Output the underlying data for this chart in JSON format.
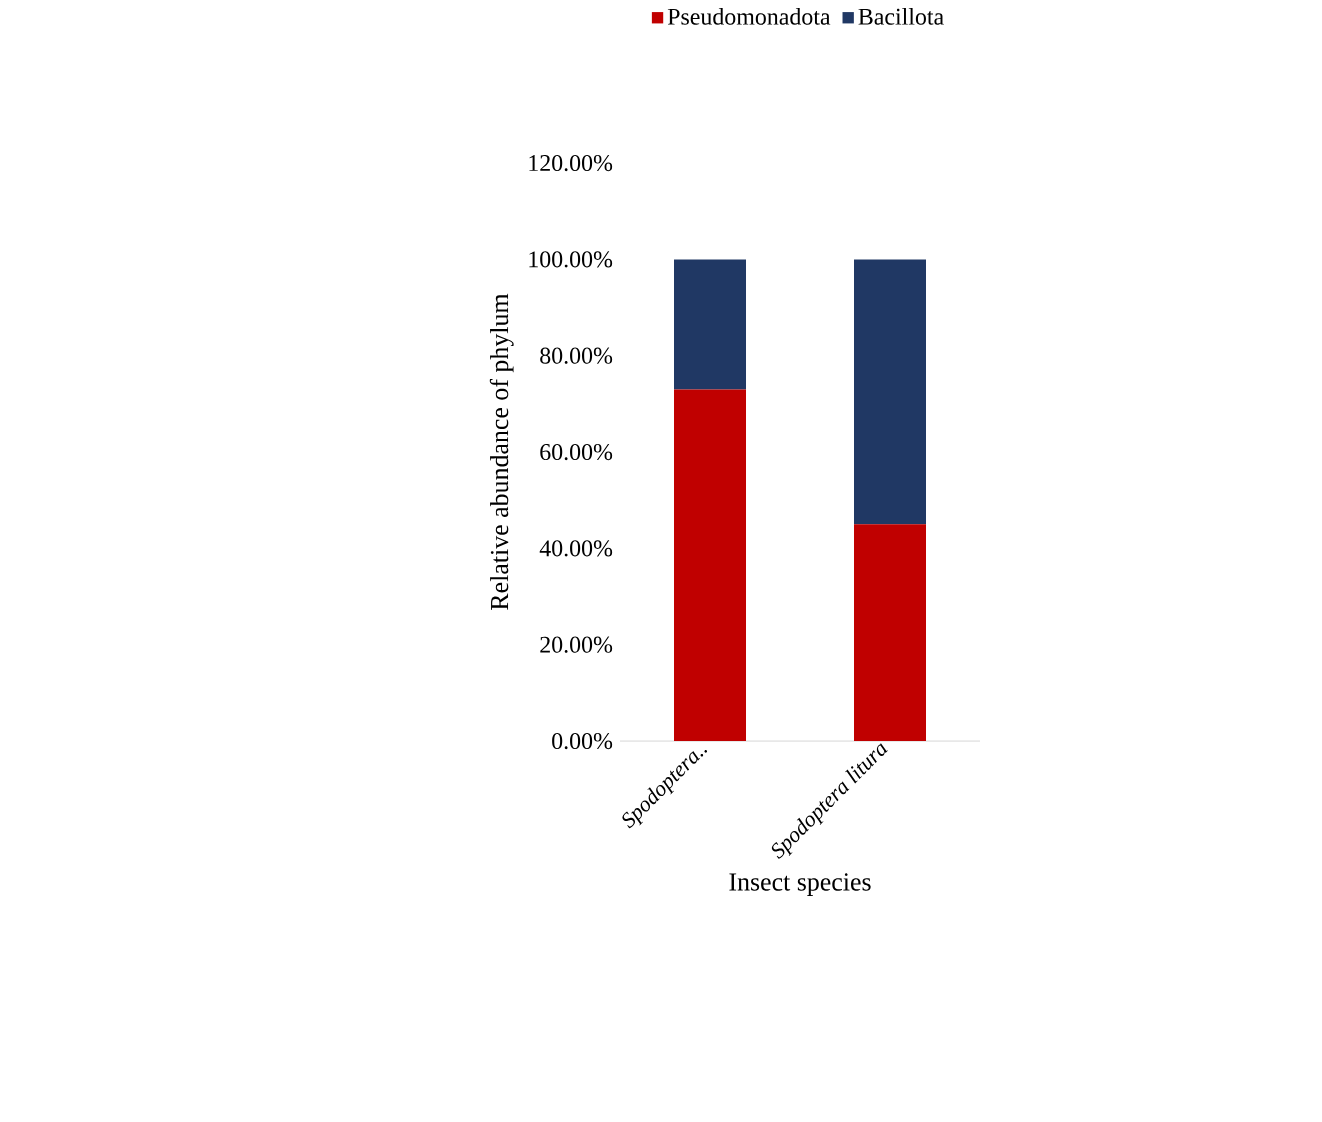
{
  "chart_data": {
    "type": "bar",
    "stacked": true,
    "xlabel": "Insect species",
    "ylabel": "Relative abundance of phylum",
    "categories": [
      "*Spodoptera..*",
      "*Spodoptera litura*"
    ],
    "series": [
      {
        "name": "Pseudomonadota",
        "color": "#c00000",
        "values": [
          73,
          45
        ]
      },
      {
        "name": "Bacillota",
        "color": "#203864",
        "values": [
          27,
          55
        ]
      }
    ],
    "ylim": [
      0,
      120
    ],
    "yticks": [
      {
        "value": 0,
        "label": "0.00%"
      },
      {
        "value": 20,
        "label": "20.00%"
      },
      {
        "value": 40,
        "label": "40.00%"
      },
      {
        "value": 60,
        "label": "60.00%"
      },
      {
        "value": 80,
        "label": "80.00%"
      },
      {
        "value": 100,
        "label": "100.00%"
      },
      {
        "value": 120,
        "label": "120.00%"
      }
    ],
    "legend": "top"
  }
}
